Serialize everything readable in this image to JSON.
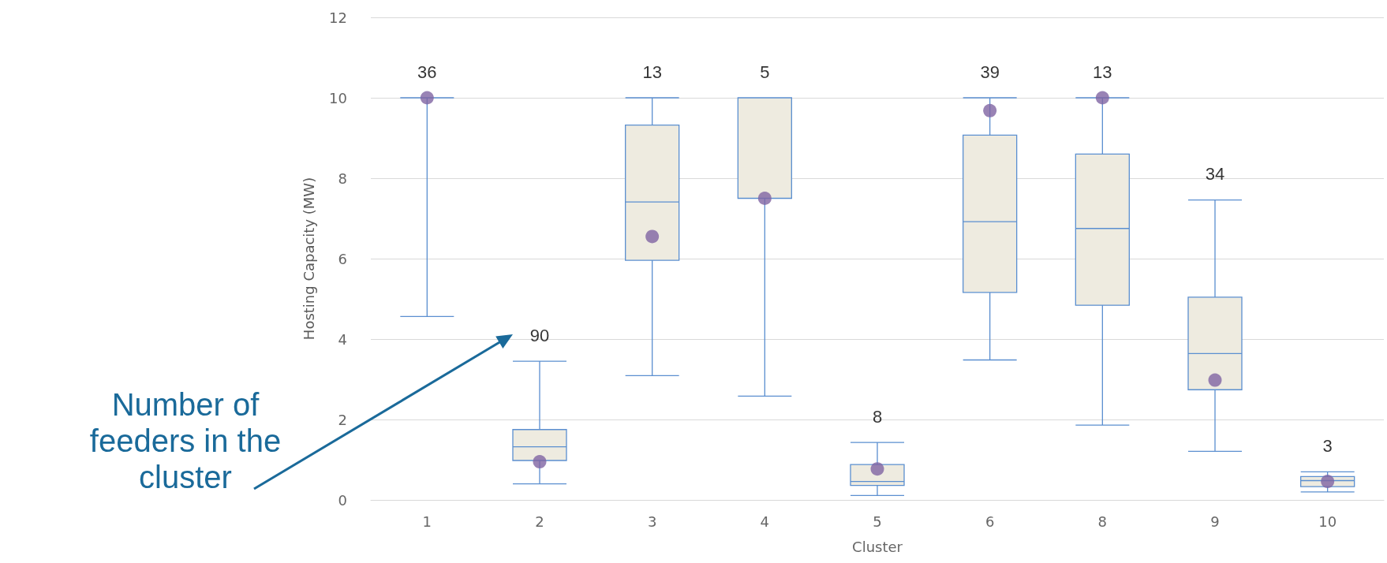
{
  "chart_data": {
    "type": "box",
    "xlabel": "Cluster",
    "ylabel": "Hosting Capacity (MW)",
    "categories": [
      "1",
      "2",
      "3",
      "4",
      "5",
      "6",
      "8",
      "9",
      "10"
    ],
    "ylim": [
      0,
      12
    ],
    "yticks": [
      0,
      2,
      4,
      6,
      8,
      10,
      12
    ],
    "grid": "y",
    "series": [
      {
        "color": "#5b8fd0",
        "value_labels": [
          "36",
          "90",
          "13",
          "5",
          "8",
          "39",
          "13",
          "34",
          "3"
        ],
        "boxes": [
          {
            "low": 4.56,
            "q1": 10,
            "median": 10,
            "q3": 10,
            "high": 10
          },
          {
            "low": 0.4,
            "q1": 0.98,
            "median": 1.32,
            "q3": 1.75,
            "high": 3.45
          },
          {
            "low": 3.09,
            "q1": 5.96,
            "median": 7.41,
            "q3": 9.32,
            "high": 10
          },
          {
            "low": 2.58,
            "q1": 7.5,
            "median": 7.5,
            "q3": 10,
            "high": 10
          },
          {
            "low": 0.11,
            "q1": 0.36,
            "median": 0.46,
            "q3": 0.88,
            "high": 1.43
          },
          {
            "low": 3.48,
            "q1": 5.16,
            "median": 6.92,
            "q3": 9.07,
            "high": 10
          },
          {
            "low": 1.86,
            "q1": 4.84,
            "median": 6.75,
            "q3": 8.6,
            "high": 10
          },
          {
            "low": 1.21,
            "q1": 2.74,
            "median": 3.64,
            "q3": 5.04,
            "high": 7.46
          },
          {
            "low": 0.2,
            "q1": 0.33,
            "median": 0.48,
            "q3": 0.58,
            "high": 0.7
          }
        ]
      },
      {
        "type": "scatter",
        "color": "#8064a2",
        "marker": "circle",
        "x": [
          "1",
          "2",
          "3",
          "4",
          "5",
          "6",
          "8",
          "9",
          "10"
        ],
        "values": [
          10,
          0.95,
          6.55,
          7.5,
          0.77,
          9.68,
          10,
          2.98,
          0.46
        ]
      }
    ],
    "annotations": [
      "Number of feeders in the cluster"
    ]
  }
}
